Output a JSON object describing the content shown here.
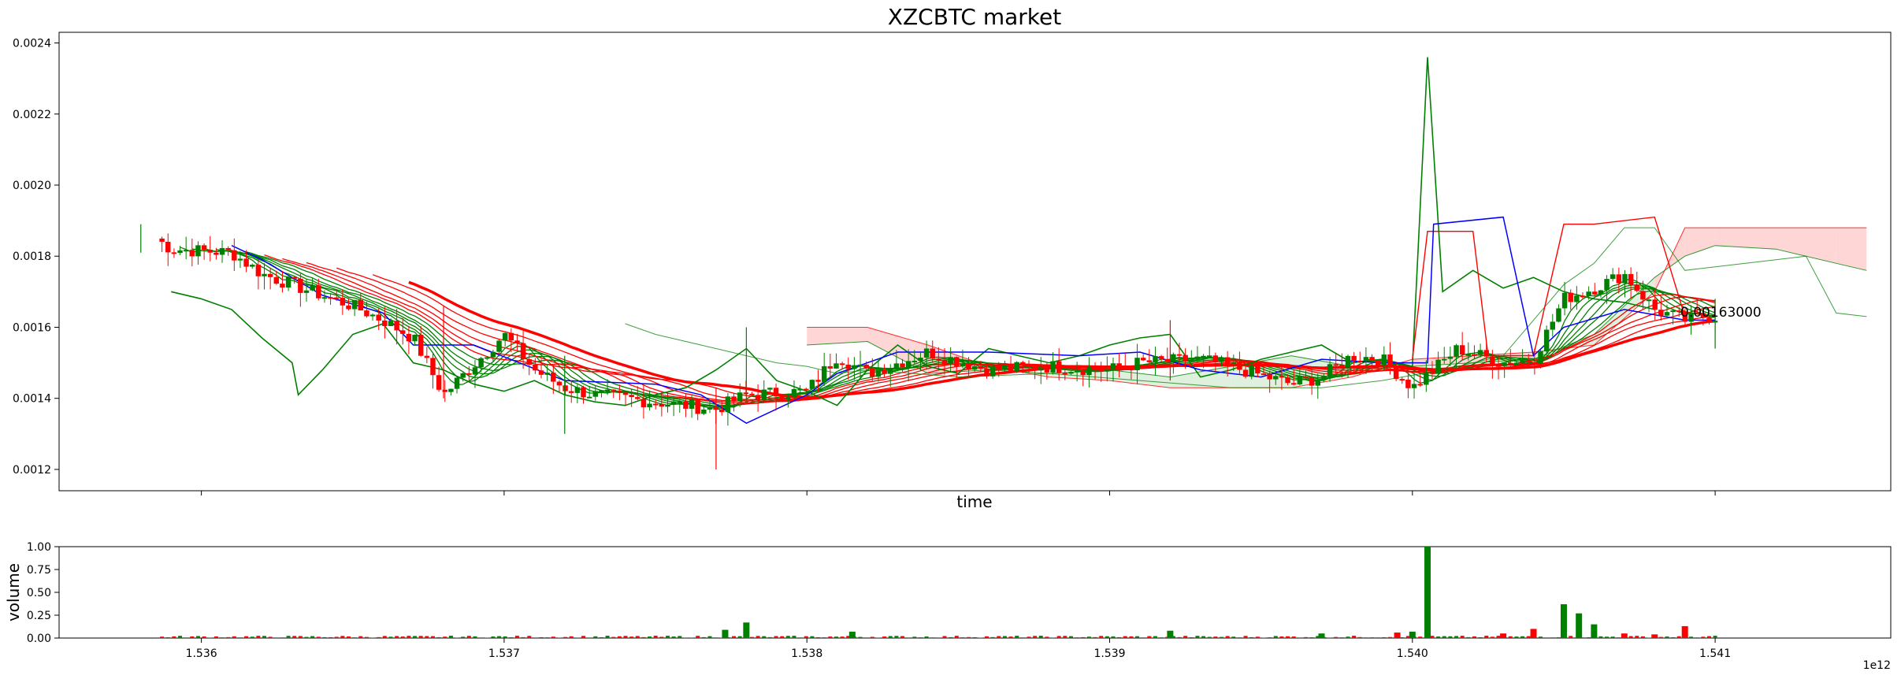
{
  "chart_data": [
    {
      "type": "candlestick",
      "title": "XZCBTC market",
      "xlabel": "time",
      "ylabel": "",
      "ylim": [
        0.00114,
        0.00243
      ],
      "xlim": [
        1.53553,
        1.54158
      ],
      "y_ticks": [
        "0.0012",
        "0.0014",
        "0.0016",
        "0.0018",
        "0.0020",
        "0.0022",
        "0.0024"
      ],
      "y_tick_values": [
        0.0012,
        0.0014,
        0.0016,
        0.0018,
        0.002,
        0.0022,
        0.0024
      ],
      "x_tick_values": [
        1.536,
        1.537,
        1.538,
        1.539,
        1.54,
        1.541
      ],
      "x_tick_labels_shown": false,
      "annotation": "0.00163000",
      "annotation_value": 0.00163,
      "colors": {
        "up": "#008000",
        "down": "#ff0000",
        "blue_line": "#0000ff",
        "cloud_red": "#ffd6d6",
        "cloud_green": "#dff0df"
      },
      "price_anchors": {
        "x": [
          1.53585,
          1.5359,
          1.5361,
          1.5362,
          1.5364,
          1.5365,
          1.5366,
          1.5367,
          1.5368,
          1.537,
          1.5371,
          1.5372,
          1.5373,
          1.5375,
          1.5377,
          1.5378,
          1.538,
          1.5381,
          1.5382,
          1.5384,
          1.5386,
          1.5388,
          1.539,
          1.5391,
          1.5393,
          1.5394,
          1.5396,
          1.5397,
          1.5398,
          1.5399,
          1.54,
          1.54015,
          1.5403,
          1.5404,
          1.5405,
          1.5406,
          1.5407,
          1.5408,
          1.5409,
          1.54095,
          1.541
        ],
        "close": [
          0.00185,
          0.00182,
          0.00181,
          0.00175,
          0.00169,
          0.00166,
          0.00162,
          0.00157,
          0.00141,
          0.00158,
          0.00148,
          0.00143,
          0.00141,
          0.00139,
          0.00137,
          0.00141,
          0.00142,
          0.00152,
          0.00147,
          0.00153,
          0.00148,
          0.00149,
          0.00148,
          0.0015,
          0.00151,
          0.00149,
          0.00144,
          0.00146,
          0.00152,
          0.00151,
          0.00143,
          0.00154,
          0.0015,
          0.00151,
          0.00168,
          0.00171,
          0.00175,
          0.00165,
          0.00162,
          0.00163,
          0.00163
        ]
      },
      "wick_spikes": [
        {
          "x": 1.5358,
          "high": 0.00189,
          "low": 0.00181
        },
        {
          "x": 1.5368,
          "high": 0.00166,
          "low": 0.0014
        },
        {
          "x": 1.5372,
          "high": 0.00152,
          "low": 0.0013
        },
        {
          "x": 1.5377,
          "high": 0.00143,
          "low": 0.0012
        },
        {
          "x": 1.5378,
          "high": 0.0016,
          "low": 0.00139
        },
        {
          "x": 1.5392,
          "high": 0.00162,
          "low": 0.00145
        },
        {
          "x": 1.541,
          "high": 0.00168,
          "low": 0.00154
        }
      ],
      "blue_line": {
        "x": [
          1.5361,
          1.5362,
          1.5364,
          1.5366,
          1.5367,
          1.5369,
          1.5372,
          1.5375,
          1.53765,
          1.5378,
          1.538,
          1.5381,
          1.5383,
          1.5386,
          1.5389,
          1.5391,
          1.5393,
          1.5395,
          1.5397,
          1.5399,
          1.54005,
          1.54007,
          1.5403,
          1.5404,
          1.5405,
          1.5407,
          1.5409,
          1.541
        ],
        "y": [
          0.00183,
          0.00179,
          0.00169,
          0.00164,
          0.00155,
          0.00155,
          0.00145,
          0.00144,
          0.00141,
          0.00133,
          0.00141,
          0.00147,
          0.00153,
          0.00153,
          0.00152,
          0.00153,
          0.00148,
          0.00146,
          0.00151,
          0.0015,
          0.0015,
          0.00189,
          0.00191,
          0.00152,
          0.0016,
          0.00165,
          0.00162,
          0.00162
        ]
      },
      "green_lagging_line": {
        "x": [
          1.5359,
          1.536,
          1.5361,
          1.5362,
          1.5363,
          1.53632,
          1.5364,
          1.5365,
          1.5366,
          1.5367,
          1.5368,
          1.5369,
          1.537,
          1.5371,
          1.5372,
          1.5373,
          1.5374,
          1.5375,
          1.5376,
          1.5377,
          1.5378,
          1.5379,
          1.538,
          1.5381,
          1.5382,
          1.5383,
          1.5384,
          1.5385,
          1.5386,
          1.5387,
          1.5388,
          1.5389,
          1.539,
          1.5391,
          1.5392,
          1.5393,
          1.5394,
          1.5395,
          1.5396,
          1.5397,
          1.5398,
          1.5399,
          1.54,
          1.54005,
          1.5401,
          1.5402,
          1.5403,
          1.5404,
          1.5405,
          1.5406,
          1.5407,
          1.5408
        ],
        "y": [
          0.0017,
          0.00168,
          0.00165,
          0.00157,
          0.0015,
          0.00141,
          0.00148,
          0.00158,
          0.00161,
          0.0015,
          0.00148,
          0.00144,
          0.00142,
          0.00145,
          0.00141,
          0.00139,
          0.00138,
          0.00141,
          0.00143,
          0.00148,
          0.00154,
          0.00145,
          0.00142,
          0.00138,
          0.00148,
          0.00155,
          0.00149,
          0.00147,
          0.00154,
          0.00152,
          0.0015,
          0.00152,
          0.00155,
          0.00157,
          0.00158,
          0.00146,
          0.00148,
          0.00151,
          0.00153,
          0.00155,
          0.0015,
          0.00151,
          0.00149,
          0.00236,
          0.0017,
          0.00176,
          0.00171,
          0.00174,
          0.0017,
          0.00168,
          0.00167,
          0.00165
        ]
      },
      "thin_green_line": {
        "x": [
          1.5374,
          1.5375,
          1.5376,
          1.5377,
          1.5378,
          1.5379,
          1.538,
          1.5381,
          1.5382,
          1.5385,
          1.5388,
          1.5391,
          1.5394,
          1.5397,
          1.5399,
          1.5401,
          1.5403,
          1.5405,
          1.5406,
          1.5407,
          1.5408,
          1.5409,
          1.541,
          1.5411,
          1.5412,
          1.5413,
          1.5414,
          1.5415
        ],
        "y": [
          0.00161,
          0.00158,
          0.00156,
          0.00154,
          0.00152,
          0.0015,
          0.00149,
          0.00147,
          0.00148,
          0.00146,
          0.00147,
          0.00145,
          0.00143,
          0.00143,
          0.00145,
          0.00148,
          0.00152,
          0.00172,
          0.00178,
          0.00188,
          0.00188,
          0.00176,
          0.00177,
          0.00178,
          0.00179,
          0.0018,
          0.00164,
          0.00163
        ]
      },
      "red_span_line": {
        "x": [
          1.54,
          1.54005,
          1.5402,
          1.54025,
          1.5404,
          1.5405,
          1.5406,
          1.5408,
          1.5409
        ],
        "y": [
          0.00151,
          0.00187,
          0.00187,
          0.00152,
          0.00152,
          0.00189,
          0.00189,
          0.00191,
          0.00163
        ]
      },
      "cloud": {
        "x": [
          1.538,
          1.5382,
          1.5384,
          1.5386,
          1.5388,
          1.539,
          1.5392,
          1.5394,
          1.5396,
          1.5398,
          1.54,
          1.5402,
          1.5404,
          1.5406,
          1.5408,
          1.5409,
          1.541,
          1.5412,
          1.5414,
          1.5415
        ],
        "span_a": [
          0.00155,
          0.00156,
          0.00147,
          0.00148,
          0.00147,
          0.00148,
          0.00146,
          0.00149,
          0.00152,
          0.00149,
          0.00149,
          0.0015,
          0.00151,
          0.00158,
          0.00174,
          0.0018,
          0.00183,
          0.00182,
          0.00178,
          0.00176
        ],
        "span_b": [
          0.0016,
          0.0016,
          0.00155,
          0.00149,
          0.00146,
          0.00145,
          0.00143,
          0.00143,
          0.00143,
          0.00146,
          0.00151,
          0.00152,
          0.00153,
          0.00155,
          0.0017,
          0.00188,
          0.00188,
          0.00188,
          0.00188,
          0.00188
        ]
      }
    },
    {
      "type": "bar",
      "ylabel": "volume",
      "ylim": [
        0,
        1.0
      ],
      "y_ticks": [
        "0.00",
        "0.25",
        "0.50",
        "0.75",
        "1.00"
      ],
      "y_tick_values": [
        0,
        0.25,
        0.5,
        0.75,
        1.0
      ],
      "xlim": [
        1.53553,
        1.54158
      ],
      "x_ticks": [
        "1.536",
        "1.537",
        "1.538",
        "1.539",
        "1.540",
        "1.541"
      ],
      "x_tick_values": [
        1.536,
        1.537,
        1.538,
        1.539,
        1.54,
        1.541
      ],
      "offset_label": "1e12",
      "spikes": [
        {
          "x": 1.5378,
          "value": 0.17,
          "up": true
        },
        {
          "x": 1.53773,
          "value": 0.09,
          "up": true
        },
        {
          "x": 1.53815,
          "value": 0.07,
          "up": true
        },
        {
          "x": 1.5392,
          "value": 0.08,
          "up": true
        },
        {
          "x": 1.5397,
          "value": 0.05,
          "up": true
        },
        {
          "x": 1.53995,
          "value": 0.06,
          "up": false
        },
        {
          "x": 1.54,
          "value": 0.07,
          "up": true
        },
        {
          "x": 1.54005,
          "value": 1.0,
          "up": true
        },
        {
          "x": 1.5403,
          "value": 0.05,
          "up": false
        },
        {
          "x": 1.5404,
          "value": 0.1,
          "up": false
        },
        {
          "x": 1.5405,
          "value": 0.37,
          "up": true
        },
        {
          "x": 1.54055,
          "value": 0.27,
          "up": true
        },
        {
          "x": 1.5406,
          "value": 0.15,
          "up": true
        },
        {
          "x": 1.5407,
          "value": 0.05,
          "up": false
        },
        {
          "x": 1.5408,
          "value": 0.04,
          "up": false
        },
        {
          "x": 1.5409,
          "value": 0.13,
          "up": false
        }
      ],
      "baseline_value": 0.015
    }
  ]
}
